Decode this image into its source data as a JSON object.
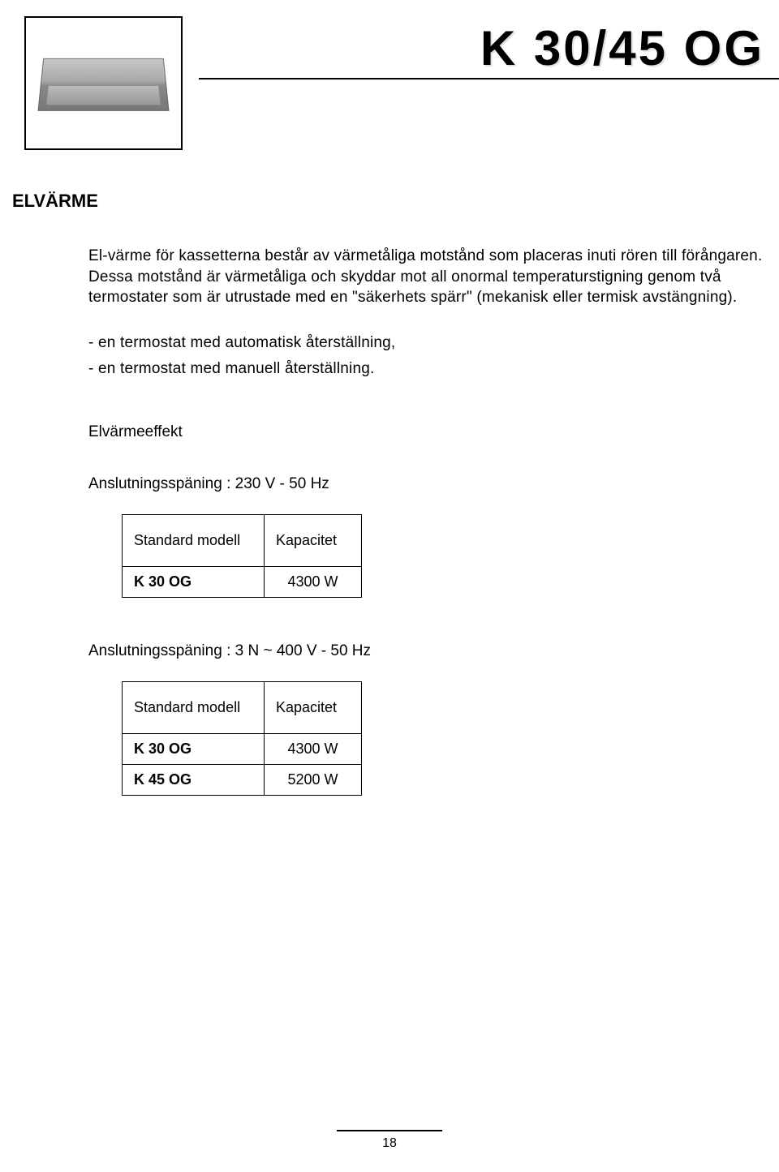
{
  "header": {
    "title": "K 30/45 OG"
  },
  "section": {
    "heading": "ELVÄRME",
    "paragraph1": "El-värme för kassetterna består av värmetåliga motstånd som placeras inuti rören till förångaren. Dessa motstånd är värmetåliga och skyddar mot all onormal temperaturstigning genom två termostater som är utrustade med en \"säkerhets spärr\" (mekanisk eller termisk avstängning).",
    "bullet1": "-  en termostat med automatisk återställning,",
    "bullet2": "-  en termostat med manuell återställning.",
    "subheading": "Elvärmeeffekt",
    "voltage1_label": "Anslutningsspäning : 230 V - 50 Hz",
    "voltage2_label": "Anslutningsspäning : 3 N ~ 400 V - 50 Hz"
  },
  "tables": {
    "col_model": "Standard modell",
    "col_capacity": "Kapacitet",
    "t1": {
      "rows": [
        {
          "model": "K 30 OG",
          "value": "4300 W"
        }
      ]
    },
    "t2": {
      "rows": [
        {
          "model": "K 30 OG",
          "value": "4300 W"
        },
        {
          "model": "K 45 OG",
          "value": "5200 W"
        }
      ]
    }
  },
  "page_number": "18",
  "colors": {
    "text": "#000000",
    "background": "#ffffff",
    "shadow": "#e0e0e0"
  }
}
